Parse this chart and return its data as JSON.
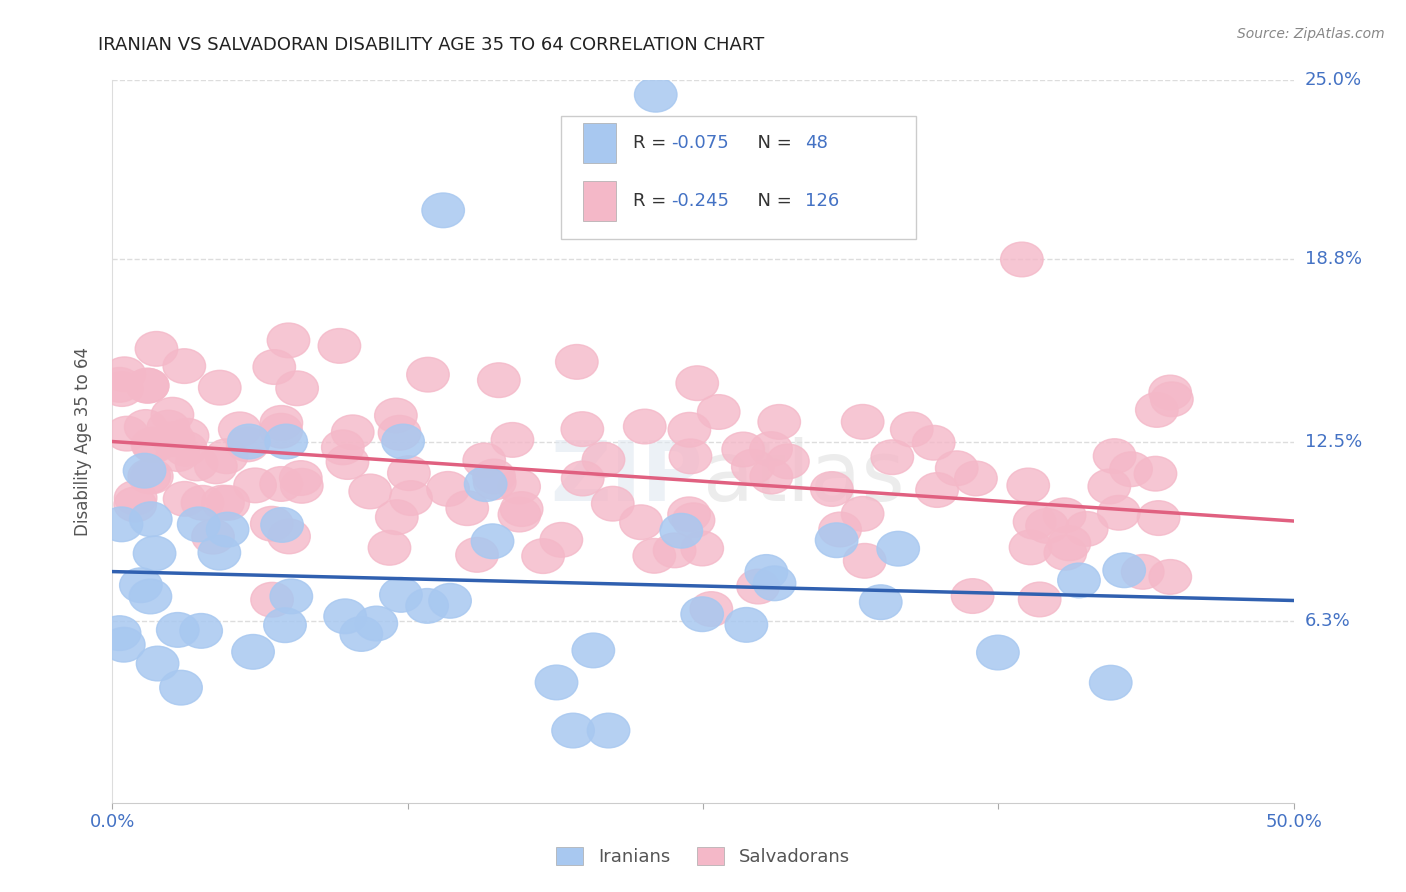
{
  "title": "IRANIAN VS SALVADORAN DISABILITY AGE 35 TO 64 CORRELATION CHART",
  "source": "Source: ZipAtlas.com",
  "ylabel": "Disability Age 35 to 64",
  "xlim": [
    0.0,
    50.0
  ],
  "ylim": [
    0.0,
    25.0
  ],
  "ytick_labels_right": [
    "6.3%",
    "12.5%",
    "18.8%",
    "25.0%"
  ],
  "ytick_vals_right": [
    6.3,
    12.5,
    18.8,
    25.0
  ],
  "legend_r_iranian": "-0.075",
  "legend_n_iranian": "48",
  "legend_r_salvadoran": "-0.245",
  "legend_n_salvadoran": "126",
  "iranian_color": "#a8c8f0",
  "salvadoran_color": "#f4b8c8",
  "trend_iranian_color": "#3060b0",
  "trend_salvadoran_color": "#e06080",
  "text_color_blue": "#4472c4",
  "background_color": "#ffffff",
  "grid_color": "#cccccc",
  "watermark": "ZIPatlas",
  "legend_text_color": "#4472c4",
  "R_text_color": "#333333"
}
